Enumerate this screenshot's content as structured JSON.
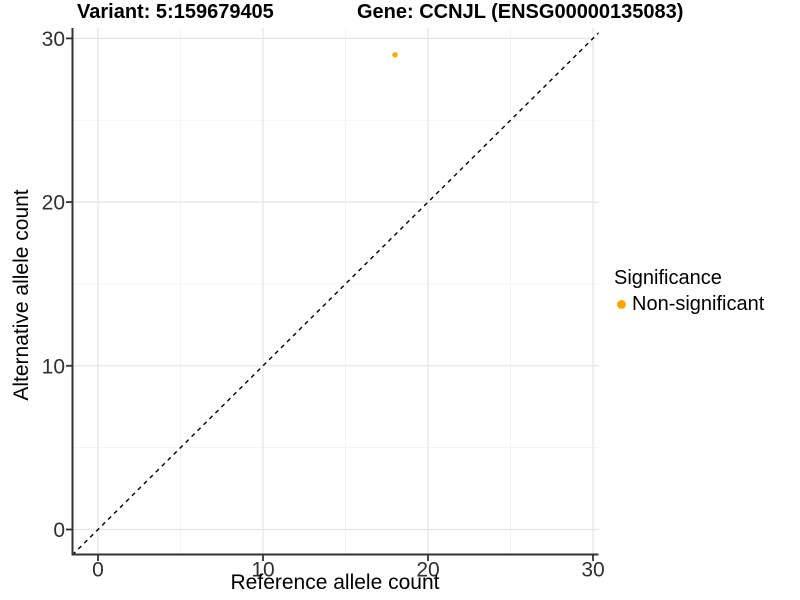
{
  "chart_data": {
    "type": "scatter",
    "titles": {
      "variant": "Variant: 5:159679405",
      "gene": "Gene: CCNJL (ENSG00000135083)"
    },
    "xlabel": "Reference allele count",
    "ylabel": "Alternative allele count",
    "x_ticks": [
      0,
      10,
      20,
      30
    ],
    "y_ticks": [
      0,
      10,
      20,
      30
    ],
    "xlim": [
      -1.5,
      30.6
    ],
    "ylim": [
      -1.5,
      30.6
    ],
    "grid": {
      "major": true,
      "minor": true
    },
    "reference_line": {
      "style": "dashed",
      "equation": "y = x",
      "color": "#000000"
    },
    "series": [
      {
        "name": "Non-significant",
        "color": "#FFA500",
        "points": [
          {
            "x": 18,
            "y": 29
          }
        ]
      }
    ],
    "legend": {
      "title": "Significance",
      "position": "right",
      "entries": [
        {
          "label": "Non-significant",
          "color": "#FFA500"
        }
      ]
    }
  },
  "colors": {
    "axis_line": "#333333",
    "tick_label": "#303030",
    "grid_major": "#E4E4E4",
    "grid_minor": "#F1F1F1",
    "background": "#FFFFFF"
  }
}
